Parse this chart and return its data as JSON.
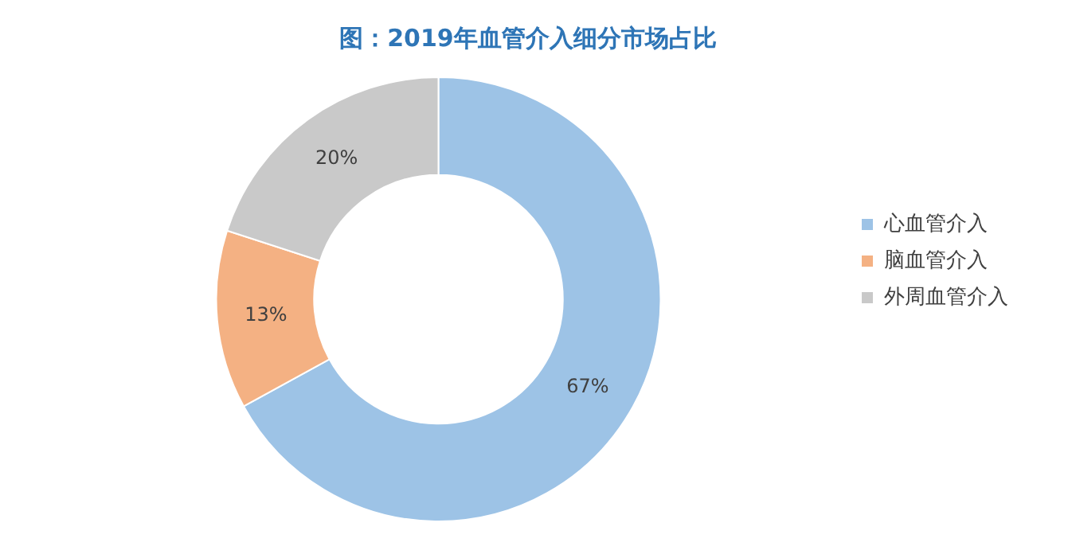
{
  "chart_data": {
    "type": "donut",
    "title": "图：2019年血管介入细分市场占比",
    "categories": [
      "心血管介入",
      "脑血管介入",
      "外周血管介入"
    ],
    "values": [
      67,
      13,
      20
    ],
    "colors": [
      "#9dc3e6",
      "#f4b183",
      "#c9c9c9"
    ],
    "value_labels": [
      "67%",
      "13%",
      "20%"
    ],
    "legend": "right"
  }
}
